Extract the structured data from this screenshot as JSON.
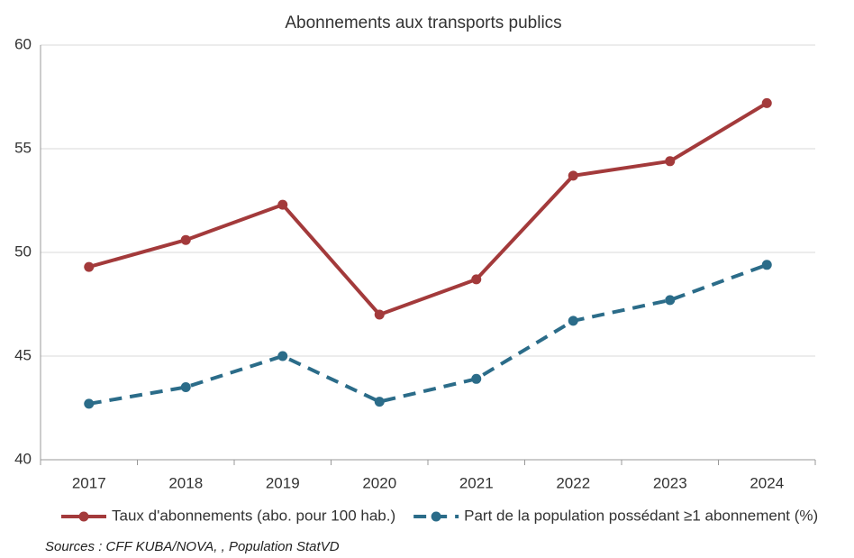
{
  "chart_data": {
    "type": "line",
    "title": "Abonnements aux transports publics",
    "categories": [
      "2017",
      "2018",
      "2019",
      "2020",
      "2021",
      "2022",
      "2023",
      "2024"
    ],
    "series": [
      {
        "name": "Taux d'abonnements (abo. pour 100 hab.)",
        "color": "#a33a3b",
        "dashed": false,
        "values": [
          49.3,
          50.6,
          52.3,
          47.0,
          48.7,
          53.7,
          54.4,
          57.2
        ]
      },
      {
        "name": "Part de la population possédant ≥1 abonnement (%)",
        "color": "#2b6c89",
        "dashed": true,
        "values": [
          42.7,
          43.5,
          45.0,
          42.8,
          43.9,
          46.7,
          47.7,
          49.4
        ]
      }
    ],
    "ylim": [
      40,
      60
    ],
    "yticks": [
      40,
      45,
      50,
      55,
      60
    ],
    "grid": true,
    "source": "Sources : CFF KUBA/NOVA, , Population StatVD"
  }
}
